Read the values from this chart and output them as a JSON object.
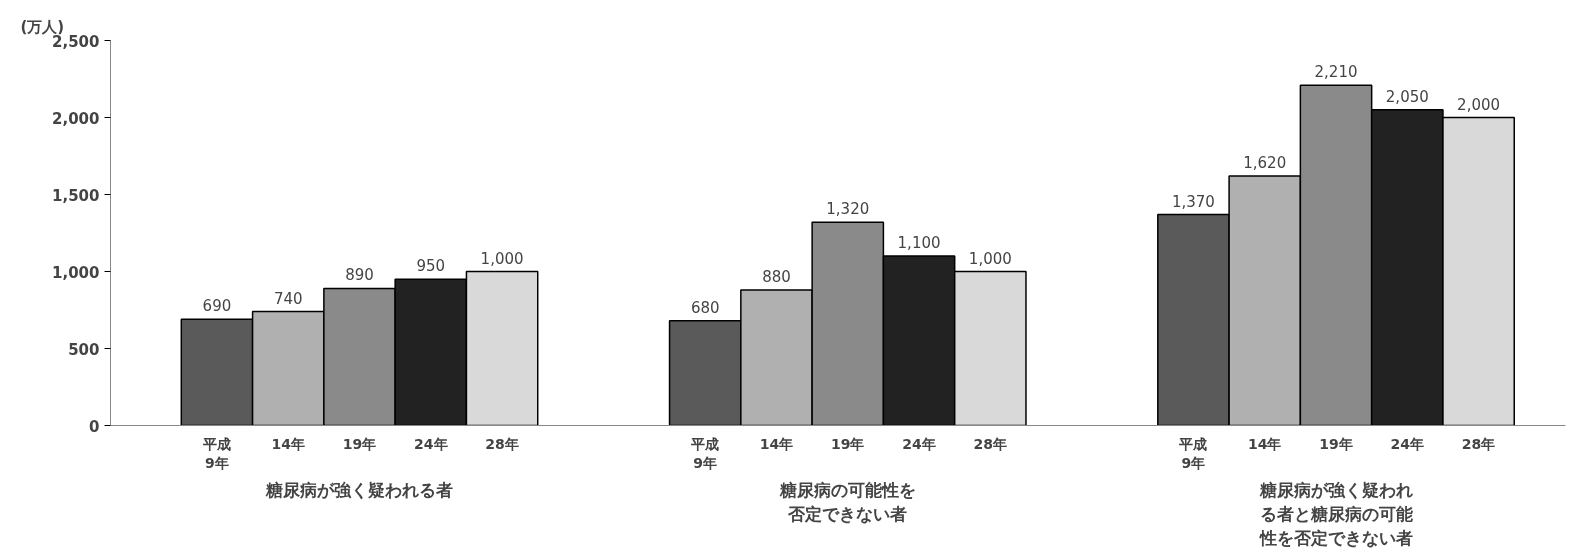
{
  "chart_data": {
    "type": "bar",
    "ylabel": "(万人)",
    "categories": [
      "糖尿病が強く疑われる者",
      "糖尿病の可能性を否定できない者",
      "糖尿病が強く疑われる者と糖尿病の可能性を否定できない者"
    ],
    "series": [
      {
        "name": "平成\n9年",
        "color": "#5a5a5a",
        "values": [
          690,
          680,
          1370
        ],
        "value_labels": [
          "690",
          "680",
          "1,370"
        ]
      },
      {
        "name": "14年",
        "color": "#b0b0b0",
        "values": [
          740,
          880,
          1620
        ],
        "value_labels": [
          "740",
          "880",
          "1,620"
        ]
      },
      {
        "name": "19年",
        "color": "#8a8a8a",
        "values": [
          890,
          1320,
          2210
        ],
        "value_labels": [
          "890",
          "1,320",
          "2,210"
        ]
      },
      {
        "name": "24年",
        "color": "#222222",
        "values": [
          950,
          1100,
          2050
        ],
        "value_labels": [
          "950",
          "1,100",
          "2,050"
        ]
      },
      {
        "name": "28年",
        "color": "#d9d9d9",
        "values": [
          1000,
          1000,
          2000
        ],
        "value_labels": [
          "1,000",
          "1,000",
          "2,000"
        ]
      }
    ],
    "ylim": [
      0,
      2500
    ],
    "yticks": [
      {
        "value": 0,
        "label": "0"
      },
      {
        "value": 500,
        "label": "500"
      },
      {
        "value": 1000,
        "label": "1,000"
      },
      {
        "value": 1500,
        "label": "1,500"
      },
      {
        "value": 2000,
        "label": "2,000"
      },
      {
        "value": 2500,
        "label": "2,500"
      }
    ],
    "grid": false
  }
}
